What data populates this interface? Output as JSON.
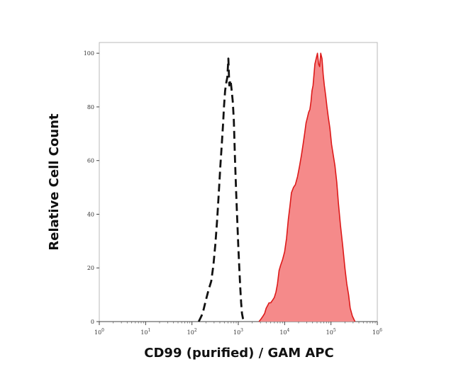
{
  "chart_data": {
    "type": "area",
    "title": "",
    "xlabel": "CD99 (purified) / GAM APC",
    "ylabel": "Relative Cell Count",
    "xscale": "log",
    "xlim": [
      1,
      1000000
    ],
    "ylim": [
      0,
      104
    ],
    "x_ticks": [
      {
        "value": 1,
        "base": "10",
        "exp": "0"
      },
      {
        "value": 10,
        "base": "10",
        "exp": "1"
      },
      {
        "value": 100,
        "base": "10",
        "exp": "2"
      },
      {
        "value": 1000,
        "base": "10",
        "exp": "3"
      },
      {
        "value": 10000,
        "base": "10",
        "exp": "4"
      },
      {
        "value": 100000,
        "base": "10",
        "exp": "5"
      },
      {
        "value": 1000000,
        "base": "10",
        "exp": "6"
      }
    ],
    "y_ticks": [
      {
        "value": 0,
        "label": "0"
      },
      {
        "value": 20,
        "label": "20"
      },
      {
        "value": 40,
        "label": "40"
      },
      {
        "value": 60,
        "label": "60"
      },
      {
        "value": 80,
        "label": "80"
      },
      {
        "value": 100,
        "label": "100"
      }
    ],
    "grid": false,
    "series": [
      {
        "style": "dashed",
        "color": "#111111",
        "fill": "none",
        "x": [
          140,
          170,
          200,
          230,
          260,
          290,
          320,
          350,
          380,
          410,
          440,
          470,
          490,
          520,
          550,
          580,
          610,
          640,
          680,
          720,
          760,
          800,
          850,
          900,
          950,
          1000,
          1050,
          1100,
          1150,
          1200,
          1300
        ],
        "y": [
          0,
          3,
          8,
          12,
          15,
          21,
          29,
          38,
          48,
          58,
          66,
          74,
          80,
          86,
          89,
          91,
          98,
          88,
          90,
          86,
          82,
          75,
          60,
          48,
          38,
          28,
          20,
          13,
          7,
          3,
          0
        ]
      },
      {
        "style": "solid",
        "color": "#dd1a1a",
        "fill": "#f58a8a",
        "x": [
          2800,
          3100,
          3400,
          3700,
          4000,
          4300,
          4600,
          5000,
          5500,
          6000,
          6500,
          7000,
          7600,
          8200,
          9000,
          10000,
          11000,
          12000,
          13000,
          14000,
          15500,
          17000,
          19000,
          21000,
          23000,
          25000,
          27000,
          29000,
          31000,
          33000,
          35000,
          37000,
          39000,
          41000,
          43000,
          45000,
          48000,
          51000,
          54000,
          57000,
          60000,
          64000,
          68000,
          72000,
          77000,
          82000,
          88000,
          95000,
          103000,
          112000,
          122000,
          133000,
          145000,
          160000,
          180000,
          200000,
          220000,
          240000,
          260000,
          290000,
          330000
        ],
        "y": [
          0,
          1,
          2,
          3,
          5,
          6,
          7,
          7,
          8,
          9,
          11,
          14,
          19,
          21,
          23,
          26,
          31,
          38,
          43,
          48,
          50,
          51,
          54,
          58,
          62,
          66,
          70,
          74,
          76,
          78,
          79,
          82,
          86,
          88,
          92,
          96,
          98,
          100,
          96,
          95,
          100,
          98,
          92,
          88,
          84,
          80,
          76,
          72,
          66,
          62,
          58,
          52,
          44,
          36,
          28,
          20,
          14,
          10,
          5,
          2,
          0
        ]
      }
    ]
  }
}
